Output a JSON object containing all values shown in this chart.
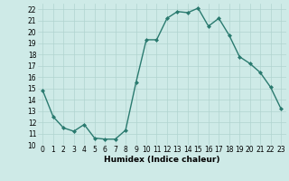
{
  "x": [
    0,
    1,
    2,
    3,
    4,
    5,
    6,
    7,
    8,
    9,
    10,
    11,
    12,
    13,
    14,
    15,
    16,
    17,
    18,
    19,
    20,
    21,
    22,
    23
  ],
  "y": [
    14.8,
    12.5,
    11.5,
    11.2,
    11.8,
    10.6,
    10.5,
    10.5,
    11.3,
    15.5,
    19.3,
    19.3,
    21.2,
    21.8,
    21.7,
    22.1,
    20.5,
    21.2,
    19.7,
    17.8,
    17.2,
    16.4,
    15.1,
    13.2
  ],
  "line_color": "#2a7a6f",
  "marker": "D",
  "marker_size": 2,
  "line_width": 1.0,
  "xlabel": "Humidex (Indice chaleur)",
  "xlim": [
    -0.5,
    23.5
  ],
  "ylim": [
    10,
    22.5
  ],
  "yticks": [
    10,
    11,
    12,
    13,
    14,
    15,
    16,
    17,
    18,
    19,
    20,
    21,
    22
  ],
  "xticks": [
    0,
    1,
    2,
    3,
    4,
    5,
    6,
    7,
    8,
    9,
    10,
    11,
    12,
    13,
    14,
    15,
    16,
    17,
    18,
    19,
    20,
    21,
    22,
    23
  ],
  "bg_color": "#ceeae7",
  "grid_color": "#b0d4d0",
  "label_fontsize": 6.5,
  "tick_fontsize": 5.5
}
